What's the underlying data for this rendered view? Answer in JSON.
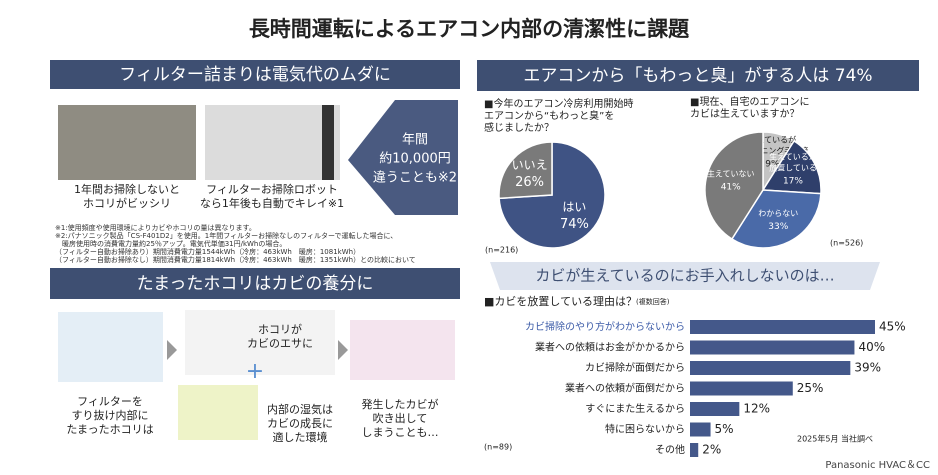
{
  "title": "長時間運転によるエアコン内部の清潔性に課題",
  "left": {
    "section1": {
      "heading": "フィルター詰まりは電気代のムダに",
      "photo1_caption": [
        "1年間お掃除しないと",
        "ホコリがビッシリ"
      ],
      "photo2_caption": [
        "フィルターお掃除ロボット",
        "なら1年後も自動でキレイ※1"
      ],
      "callout": [
        "年間",
        "約10,000円",
        "違うことも※2"
      ],
      "notes": [
        "※1:使用頻度や使用環境によりカビやホコリの量は異なります。",
        "※2:パナソニック製品「CS-F401D2」を使用。1年間フィルターお掃除なしのフィルターで運転した場合に、",
        "　暖房使用時の消費電力量約25％アップ。電気代単価31円/kWhの場合。",
        "（フィルター自動お掃除あり）期間消費電力量1544kWh（冷房：463kWh　暖房：1081kWh）",
        "（フィルター自動お掃除なし）期間消費電力量1814kWh（冷房：463kWh　暖房：1351kWh）との比較において"
      ]
    },
    "section2": {
      "heading": "たまったホコリはカビの養分に",
      "step1": [
        "フィルターを",
        "すり抜け内部に",
        "たまったホコリは"
      ],
      "step2a": [
        "ホコリが",
        "カビのエサに"
      ],
      "step2b": [
        "内部の湿気は",
        "カビの成長に",
        "適した環境"
      ],
      "step3": [
        "発生したカビが",
        "吹き出して",
        "しまうことも…"
      ]
    }
  },
  "right": {
    "heading": "エアコンから「もわっと臭」がする人は 74%",
    "pie1": {
      "type": "pie",
      "question": [
        "■今年のエアコン冷房利用開始時",
        "エアコンから“もわっと臭”を",
        "感じましたか？"
      ],
      "labels": [
        [
          "はい"
        ],
        [
          "いいえ"
        ]
      ],
      "values": [
        74,
        26
      ],
      "value_labels": [
        "74%",
        "26%"
      ],
      "colors": [
        "#3f5384",
        "#7a7a7a"
      ],
      "n": "(n=216)"
    },
    "pie2": {
      "type": "pie",
      "question": [
        "■現在、自宅のエアコンに",
        "カビは生えていますか？"
      ],
      "labels": [
        [
          "生えているが",
          "クリーニング手配済"
        ],
        [
          "生えているが",
          "放置している"
        ],
        [
          "わからない"
        ],
        [
          "生えていない"
        ]
      ],
      "values": [
        9,
        17,
        33,
        41
      ],
      "value_labels": [
        "9%",
        "17%",
        "33%",
        "41%"
      ],
      "colors": [
        "#c4c4c4",
        "#2f3f6b",
        "#4a6aa8",
        "#7a7a7a"
      ],
      "n": "(n=526)"
    },
    "banner": "カビが生えているのにお手入れしないのは…",
    "bars": {
      "type": "bar",
      "title": "■カビを放置している理由は？",
      "note": "(複数回答)",
      "categories": [
        "カビ掃除のやり方がわからないから",
        "業者への依頼はお金がかかるから",
        "カビ掃除が面倒だから",
        "業者への依頼が面倒だから",
        "すぐにまた生えるから",
        "特に困らないから",
        "その他"
      ],
      "values": [
        45,
        40,
        39,
        25,
        12,
        5,
        2
      ],
      "value_labels": [
        "45%",
        "40%",
        "39%",
        "25%",
        "12%",
        "5%",
        "2%"
      ],
      "color": "#44588a",
      "n": "(n=89)",
      "source": "2025年5月 当社調べ"
    }
  },
  "footer": "Panasonic HVAC＆CC"
}
